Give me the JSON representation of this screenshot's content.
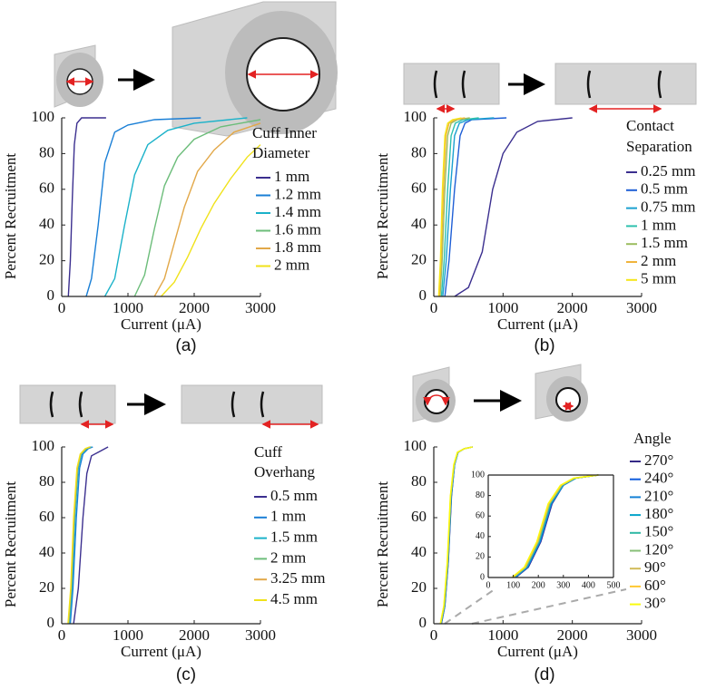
{
  "chart_data": [
    {
      "type": "line",
      "caption": "(a)",
      "xlabel": "Current (μA)",
      "ylabel": "Percent Recruitment",
      "legend_title": [
        "Cuff Inner",
        "Diameter"
      ],
      "xlim": [
        0,
        3000
      ],
      "ylim": [
        0,
        100
      ],
      "xticks": [
        0,
        1000,
        2000,
        3000
      ],
      "yticks": [
        0,
        20,
        40,
        60,
        80,
        100
      ],
      "series": [
        {
          "name": "1 mm",
          "color": "#3b2f8f",
          "x": [
            100,
            130,
            160,
            190,
            230,
            300,
            670
          ],
          "values": [
            0,
            20,
            55,
            85,
            97,
            100,
            100
          ]
        },
        {
          "name": "1.2 mm",
          "color": "#1a7fd6",
          "x": [
            370,
            450,
            550,
            650,
            800,
            1000,
            1400,
            2100
          ],
          "values": [
            0,
            10,
            40,
            75,
            92,
            96,
            99,
            100
          ]
        },
        {
          "name": "1.4 mm",
          "color": "#1bb2c9",
          "x": [
            650,
            800,
            950,
            1100,
            1300,
            1600,
            2000,
            2800
          ],
          "values": [
            0,
            10,
            40,
            68,
            85,
            93,
            97,
            100
          ]
        },
        {
          "name": "1.6 mm",
          "color": "#6cbd7a",
          "x": [
            1100,
            1250,
            1400,
            1550,
            1750,
            2000,
            2400,
            3000
          ],
          "values": [
            0,
            12,
            38,
            62,
            78,
            88,
            95,
            99
          ]
        },
        {
          "name": "1.8 mm",
          "color": "#e2a849",
          "x": [
            1400,
            1550,
            1700,
            1850,
            2050,
            2300,
            2600,
            3000
          ],
          "values": [
            0,
            10,
            30,
            50,
            70,
            82,
            92,
            97
          ]
        },
        {
          "name": "2 mm",
          "color": "#f0e21a",
          "x": [
            1500,
            1700,
            1900,
            2100,
            2300,
            2550,
            2800,
            3000
          ],
          "values": [
            0,
            8,
            22,
            38,
            52,
            66,
            78,
            85
          ]
        }
      ]
    },
    {
      "type": "line",
      "caption": "(b)",
      "xlabel": "Current (μA)",
      "ylabel": "Percent Recruitment",
      "legend_title": [
        "Contact",
        "Separation"
      ],
      "xlim": [
        0,
        3000
      ],
      "ylim": [
        0,
        100
      ],
      "xticks": [
        0,
        1000,
        2000,
        3000
      ],
      "yticks": [
        0,
        20,
        40,
        60,
        80,
        100
      ],
      "series": [
        {
          "name": "0.25 mm",
          "color": "#3b2f8f",
          "x": [
            300,
            500,
            700,
            850,
            1000,
            1200,
            1500,
            2000
          ],
          "values": [
            0,
            5,
            25,
            60,
            80,
            92,
            98,
            100
          ]
        },
        {
          "name": "0.5 mm",
          "color": "#1f5fd6",
          "x": [
            160,
            220,
            300,
            380,
            450,
            550,
            1050
          ],
          "values": [
            0,
            20,
            60,
            90,
            97,
            99,
            100
          ]
        },
        {
          "name": "0.75 mm",
          "color": "#1aa0d0",
          "x": [
            130,
            180,
            240,
            300,
            370,
            500,
            870
          ],
          "values": [
            0,
            20,
            60,
            90,
            97,
            99,
            100
          ]
        },
        {
          "name": "1 mm",
          "color": "#2ec0ae",
          "x": [
            110,
            150,
            200,
            250,
            310,
            420,
            650
          ],
          "values": [
            0,
            20,
            60,
            90,
            97,
            99,
            100
          ]
        },
        {
          "name": "1.5 mm",
          "color": "#9bbd5f",
          "x": [
            90,
            120,
            160,
            200,
            250,
            340,
            520
          ],
          "values": [
            0,
            20,
            60,
            90,
            97,
            99,
            100
          ]
        },
        {
          "name": "2 mm",
          "color": "#f0b43c",
          "x": [
            80,
            105,
            140,
            175,
            220,
            300,
            450
          ],
          "values": [
            0,
            20,
            60,
            90,
            97,
            99,
            100
          ]
        },
        {
          "name": "5 mm",
          "color": "#f5e619",
          "x": [
            70,
            95,
            125,
            160,
            200,
            270,
            400
          ],
          "values": [
            0,
            20,
            60,
            90,
            97,
            99,
            100
          ]
        }
      ]
    },
    {
      "type": "line",
      "caption": "(c)",
      "xlabel": "Current (μA)",
      "ylabel": "Percent Recruitment",
      "legend_title": [
        "Cuff",
        "Overhang"
      ],
      "xlim": [
        0,
        3000
      ],
      "ylim": [
        0,
        100
      ],
      "xticks": [
        0,
        1000,
        2000,
        3000
      ],
      "yticks": [
        0,
        20,
        40,
        60,
        80,
        100
      ],
      "series": [
        {
          "name": "0.5 mm",
          "color": "#3b2f8f",
          "x": [
            180,
            250,
            320,
            380,
            450,
            550,
            700
          ],
          "values": [
            0,
            20,
            60,
            85,
            95,
            97,
            100
          ]
        },
        {
          "name": "1 mm",
          "color": "#1a7fd6",
          "x": [
            130,
            170,
            220,
            270,
            320,
            400,
            470
          ],
          "values": [
            0,
            20,
            60,
            88,
            96,
            99,
            100
          ]
        },
        {
          "name": "1.5 mm",
          "color": "#1bb2c9",
          "x": [
            115,
            155,
            200,
            250,
            300,
            380,
            450
          ],
          "values": [
            0,
            20,
            60,
            88,
            96,
            99,
            100
          ]
        },
        {
          "name": "2 mm",
          "color": "#6cbd7a",
          "x": [
            105,
            145,
            190,
            240,
            290,
            370,
            440
          ],
          "values": [
            0,
            20,
            60,
            88,
            96,
            99,
            100
          ]
        },
        {
          "name": "3.25 mm",
          "color": "#e2a849",
          "x": [
            100,
            140,
            185,
            235,
            285,
            360,
            430
          ],
          "values": [
            0,
            20,
            60,
            88,
            96,
            99,
            100
          ]
        },
        {
          "name": "4.5 mm",
          "color": "#f0e21a",
          "x": [
            95,
            135,
            180,
            230,
            280,
            355,
            420
          ],
          "values": [
            0,
            20,
            60,
            88,
            96,
            99,
            100
          ]
        }
      ]
    },
    {
      "type": "line",
      "caption": "(d)",
      "xlabel": "Current (μA)",
      "ylabel": "Percent Recruitment",
      "legend_title": [
        "Angle"
      ],
      "xlim": [
        0,
        3000
      ],
      "ylim": [
        0,
        100
      ],
      "xticks": [
        0,
        1000,
        2000,
        3000
      ],
      "yticks": [
        0,
        20,
        40,
        60,
        80,
        100
      ],
      "series": [
        {
          "name": "270°",
          "color": "#352a87",
          "x": [
            110,
            160,
            210,
            255,
            300,
            350,
            440,
            560
          ],
          "values": [
            0,
            10,
            35,
            72,
            90,
            97,
            99,
            100
          ]
        },
        {
          "name": "240°",
          "color": "#0f5cdd",
          "x": [
            108,
            158,
            208,
            253,
            300,
            350,
            440,
            560
          ],
          "values": [
            0,
            10,
            35,
            72,
            90,
            97,
            99,
            100
          ]
        },
        {
          "name": "210°",
          "color": "#1481d6",
          "x": [
            106,
            156,
            206,
            251,
            300,
            350,
            440,
            560
          ],
          "values": [
            0,
            10,
            35,
            72,
            90,
            97,
            99,
            100
          ]
        },
        {
          "name": "180°",
          "color": "#06a4ca",
          "x": [
            104,
            154,
            204,
            249,
            298,
            350,
            440,
            560
          ],
          "values": [
            0,
            10,
            35,
            72,
            90,
            97,
            99,
            100
          ]
        },
        {
          "name": "150°",
          "color": "#2eb7a4",
          "x": [
            102,
            152,
            202,
            247,
            296,
            348,
            440,
            560
          ],
          "values": [
            0,
            10,
            35,
            72,
            90,
            97,
            99,
            100
          ]
        },
        {
          "name": "120°",
          "color": "#87bf77",
          "x": [
            100,
            150,
            200,
            245,
            294,
            346,
            440,
            560
          ],
          "values": [
            0,
            10,
            35,
            72,
            90,
            97,
            99,
            100
          ]
        },
        {
          "name": "90°",
          "color": "#d1bb59",
          "x": [
            98,
            148,
            198,
            243,
            292,
            344,
            440,
            560
          ],
          "values": [
            0,
            10,
            35,
            72,
            90,
            97,
            99,
            100
          ]
        },
        {
          "name": "60°",
          "color": "#fec832",
          "x": [
            96,
            146,
            196,
            241,
            290,
            342,
            440,
            560
          ],
          "values": [
            0,
            10,
            35,
            72,
            90,
            97,
            99,
            100
          ]
        },
        {
          "name": "30°",
          "color": "#f9fb0e",
          "x": [
            94,
            144,
            194,
            239,
            288,
            340,
            440,
            560
          ],
          "values": [
            0,
            10,
            35,
            72,
            90,
            97,
            99,
            100
          ]
        }
      ]
    },
    {
      "type": "line",
      "xlim": [
        0,
        500
      ],
      "ylim": [
        0,
        100
      ],
      "xticks": [
        0,
        100,
        200,
        300,
        400,
        500
      ],
      "yticks": [
        0,
        20,
        40,
        60,
        80,
        100
      ],
      "series": [
        {
          "color": "#352a87",
          "x": [
            110,
            160,
            210,
            255,
            300,
            350,
            440
          ],
          "values": [
            0,
            10,
            35,
            72,
            90,
            97,
            100
          ]
        },
        {
          "color": "#0f5cdd",
          "x": [
            108,
            158,
            208,
            253,
            300,
            350,
            440
          ],
          "values": [
            0,
            10,
            35,
            72,
            90,
            97,
            100
          ]
        },
        {
          "color": "#1481d6",
          "x": [
            106,
            156,
            206,
            251,
            300,
            350,
            440
          ],
          "values": [
            0,
            10,
            35,
            72,
            90,
            97,
            100
          ]
        },
        {
          "color": "#06a4ca",
          "x": [
            104,
            154,
            204,
            249,
            298,
            350,
            440
          ],
          "values": [
            0,
            10,
            35,
            72,
            90,
            97,
            100
          ]
        },
        {
          "color": "#2eb7a4",
          "x": [
            102,
            152,
            202,
            247,
            296,
            348,
            440
          ],
          "values": [
            0,
            10,
            35,
            72,
            90,
            97,
            100
          ]
        },
        {
          "color": "#87bf77",
          "x": [
            100,
            150,
            200,
            245,
            294,
            346,
            440
          ],
          "values": [
            0,
            10,
            35,
            72,
            90,
            97,
            100
          ]
        },
        {
          "color": "#d1bb59",
          "x": [
            98,
            148,
            198,
            243,
            292,
            344,
            440
          ],
          "values": [
            0,
            10,
            35,
            72,
            90,
            97,
            100
          ]
        },
        {
          "color": "#fec832",
          "x": [
            96,
            146,
            196,
            241,
            290,
            342,
            440
          ],
          "values": [
            0,
            10,
            35,
            72,
            90,
            97,
            100
          ]
        },
        {
          "color": "#f9fb0e",
          "x": [
            94,
            144,
            194,
            239,
            288,
            340,
            440
          ],
          "values": [
            0,
            10,
            35,
            72,
            90,
            97,
            100
          ]
        }
      ]
    }
  ]
}
